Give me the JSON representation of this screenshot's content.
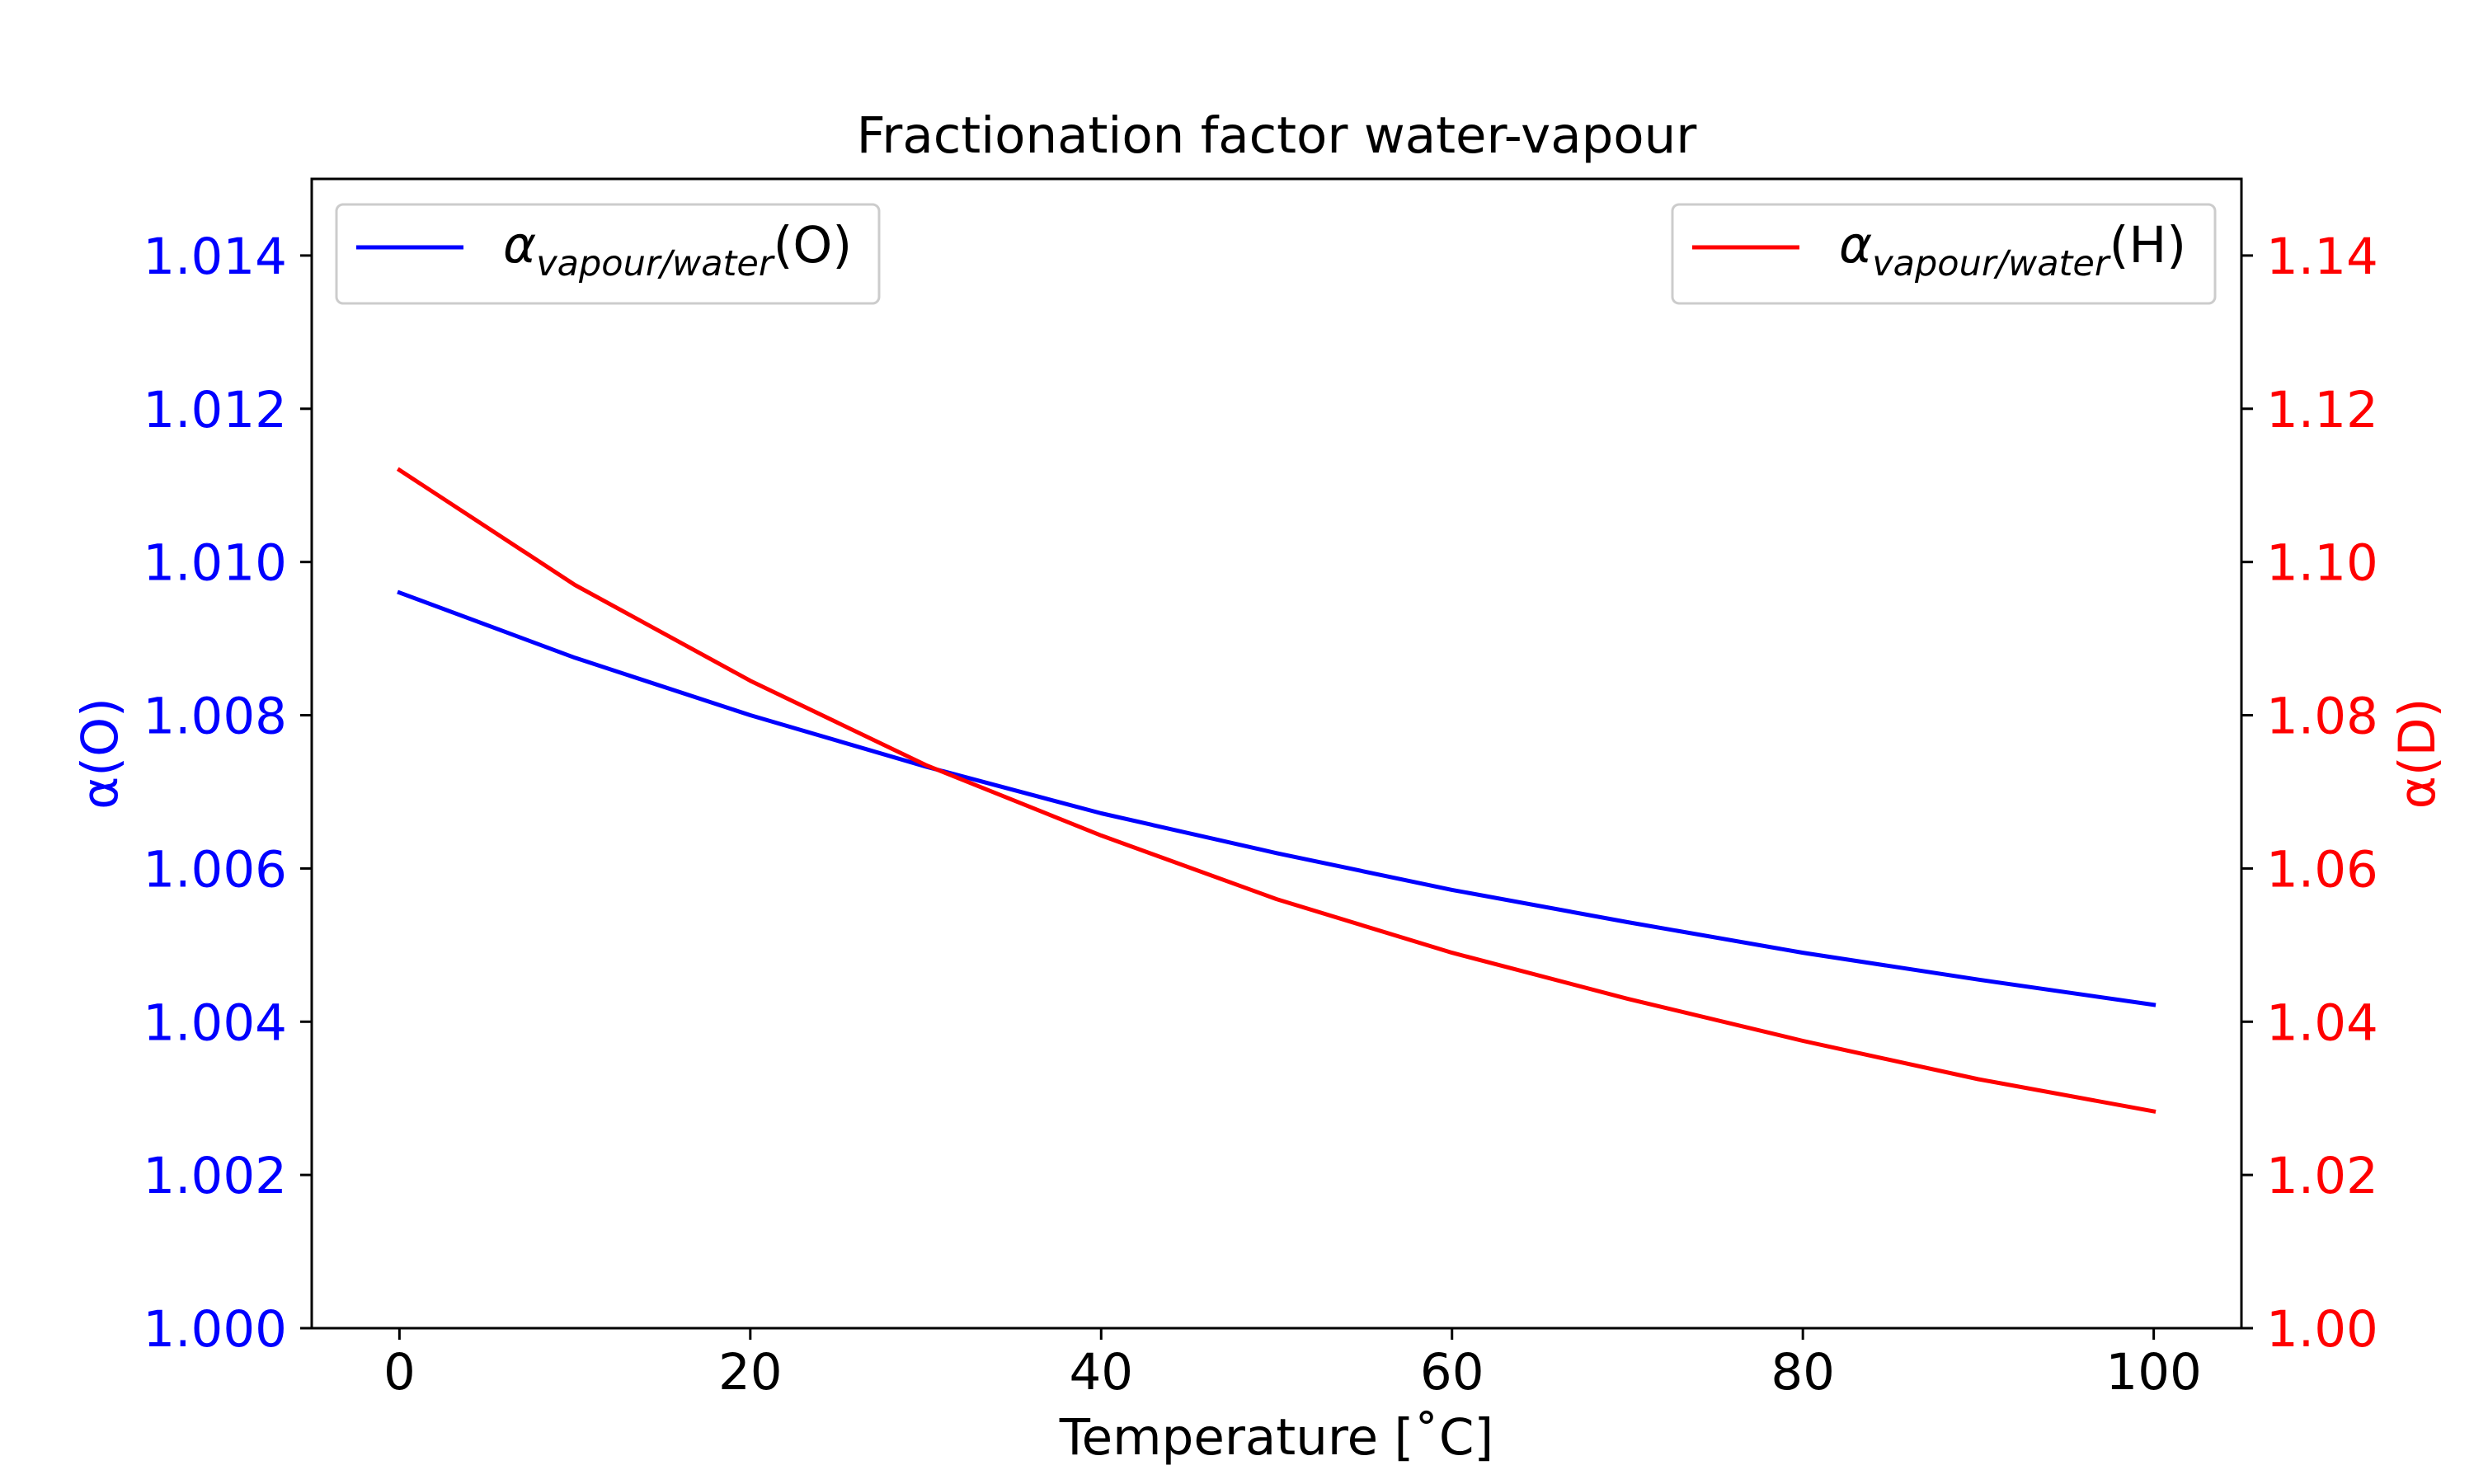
{
  "chart_data": {
    "type": "line",
    "title": "Fractionation factor water-vapour",
    "xlabel": "Temperature [˚C]",
    "xlim": [
      -5,
      105
    ],
    "x_ticks": [
      0,
      20,
      40,
      60,
      80,
      100
    ],
    "x_tick_labels": [
      "0",
      "20",
      "40",
      "60",
      "80",
      "100"
    ],
    "x": [
      0,
      10,
      20,
      30,
      40,
      50,
      60,
      70,
      80,
      90,
      100
    ],
    "grid": false,
    "y_axes": {
      "left": {
        "label": "α(O)",
        "color": "#0000ff",
        "ylim": [
          1.0,
          1.015
        ],
        "ticks": [
          1.0,
          1.002,
          1.004,
          1.006,
          1.008,
          1.01,
          1.012,
          1.014
        ],
        "tick_labels": [
          "1.000",
          "1.002",
          "1.004",
          "1.006",
          "1.008",
          "1.010",
          "1.012",
          "1.014"
        ]
      },
      "right": {
        "label": "α(D)",
        "color": "#ff0000",
        "ylim": [
          1.0,
          1.15
        ],
        "ticks": [
          1.0,
          1.02,
          1.04,
          1.06,
          1.08,
          1.1,
          1.12,
          1.14
        ],
        "tick_labels": [
          "1.00",
          "1.02",
          "1.04",
          "1.06",
          "1.08",
          "1.10",
          "1.12",
          "1.14"
        ]
      }
    },
    "series": [
      {
        "id": "oxygen",
        "legend_main": "α",
        "legend_sub": "vapour/water",
        "legend_tail": "(O)",
        "axis": "left",
        "color": "#0000ff",
        "legend_position": "upper-left",
        "values": [
          1.0096,
          1.00875,
          1.008,
          1.00733,
          1.00672,
          1.0062,
          1.00572,
          1.0053,
          1.0049,
          1.00455,
          1.00422
        ]
      },
      {
        "id": "deuterium",
        "legend_main": "α",
        "legend_sub": "vapour/water",
        "legend_tail": "(H)",
        "axis": "right",
        "color": "#ff0000",
        "legend_position": "upper-right",
        "values": [
          1.112,
          1.097,
          1.0845,
          1.0735,
          1.0643,
          1.056,
          1.049,
          1.043,
          1.0375,
          1.0325,
          1.0283
        ]
      }
    ]
  }
}
